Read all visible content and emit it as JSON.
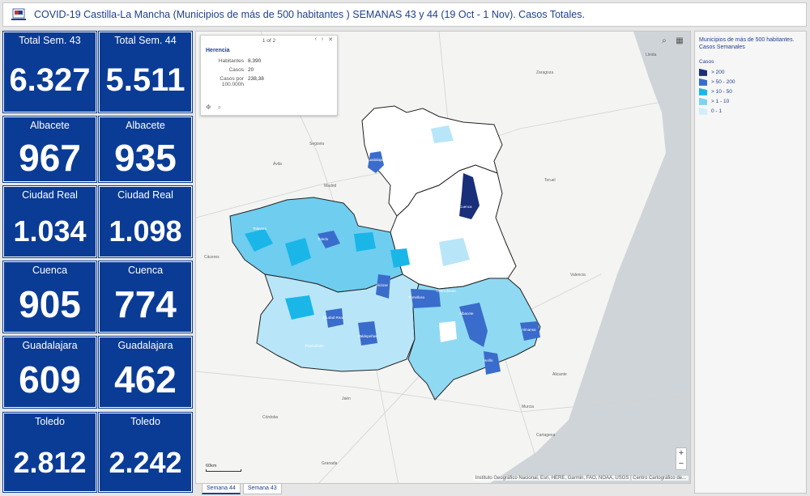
{
  "header": {
    "title": "COVID-19 Castilla-La Mancha (Municipios de más de 500 habitantes ) SEMANAS 43 y 44 (19 Oct - 1 Nov). Casos Totales.",
    "logo_icon": "region-coat-of-arms-icon"
  },
  "cards": [
    {
      "label": "Total Sem. 43",
      "value": "6.327"
    },
    {
      "label": "Total Sem. 44",
      "value": "5.511"
    },
    {
      "label": "Albacete",
      "value": "967"
    },
    {
      "label": "Albacete",
      "value": "935"
    },
    {
      "label": "Ciudad Real",
      "value": "1.034"
    },
    {
      "label": "Ciudad Real",
      "value": "1.098"
    },
    {
      "label": "Cuenca",
      "value": "905"
    },
    {
      "label": "Cuenca",
      "value": "774"
    },
    {
      "label": "Guadalajara",
      "value": "609"
    },
    {
      "label": "Guadalajara",
      "value": "462"
    },
    {
      "label": "Toledo",
      "value": "2.812"
    },
    {
      "label": "Toledo",
      "value": "2.242"
    }
  ],
  "popup": {
    "pager": "1 of 2",
    "place": "Herencia",
    "rows": [
      {
        "key": "Habitantes",
        "value": "8.390"
      },
      {
        "key": "Casos",
        "value": "20"
      },
      {
        "key": "Casos por 100.000h",
        "value": "238,38"
      }
    ],
    "prev_icon": "chevron-left-icon",
    "next_icon": "chevron-right-icon",
    "close_icon": "close-icon",
    "zoom_to_icon": "zoom-to-icon",
    "search_icon": "search-icon"
  },
  "map": {
    "cities": [
      "Zaragoza",
      "Madrid",
      "Valencia",
      "Murcia",
      "Córdoba",
      "Granada",
      "Ávila",
      "Segovia",
      "Teruel",
      "Cáceres",
      "Jaén",
      "Alicante",
      "Cartagena",
      "Lleida"
    ],
    "muni_labels": [
      "Guadalajara",
      "Toledo",
      "Talavera",
      "Cuenca",
      "Albacete",
      "Hellín",
      "Almansa",
      "Ciudad Real",
      "Puertollano",
      "Valdepeñas",
      "Alcázar",
      "Tomelloso",
      "Villarrobledo"
    ],
    "attribution": "Instituto Geográfico Nacional, Esri, HERE, Garmin, FAO, NOAA, USGS | Centro Cartográfico de...",
    "scale_label": "60km",
    "zoom_in": "+",
    "zoom_out": "−"
  },
  "tabs": [
    {
      "label": "Semana 44"
    },
    {
      "label": "Semana 43"
    }
  ],
  "legend": {
    "title": "Municipios de más de 500 habitantes. Casos Semanales",
    "subtitle": "Casos",
    "items": [
      {
        "label": "> 200",
        "color": "#1a2f7a"
      },
      {
        "label": "> 50 - 200",
        "color": "#3a6ccc"
      },
      {
        "label": "> 10 - 50",
        "color": "#1ab6e8"
      },
      {
        "label": "> 1 - 10",
        "color": "#7fd3f0"
      },
      {
        "label": "0 - 1",
        "color": "#cfeefa"
      }
    ]
  },
  "colors": {
    "brand_blue": "#0a3c96",
    "level5": "#1a2f7a",
    "level4": "#3a6ccc",
    "level3": "#1ab6e8",
    "level2": "#7fd3f0",
    "level1": "#cfeefa"
  }
}
